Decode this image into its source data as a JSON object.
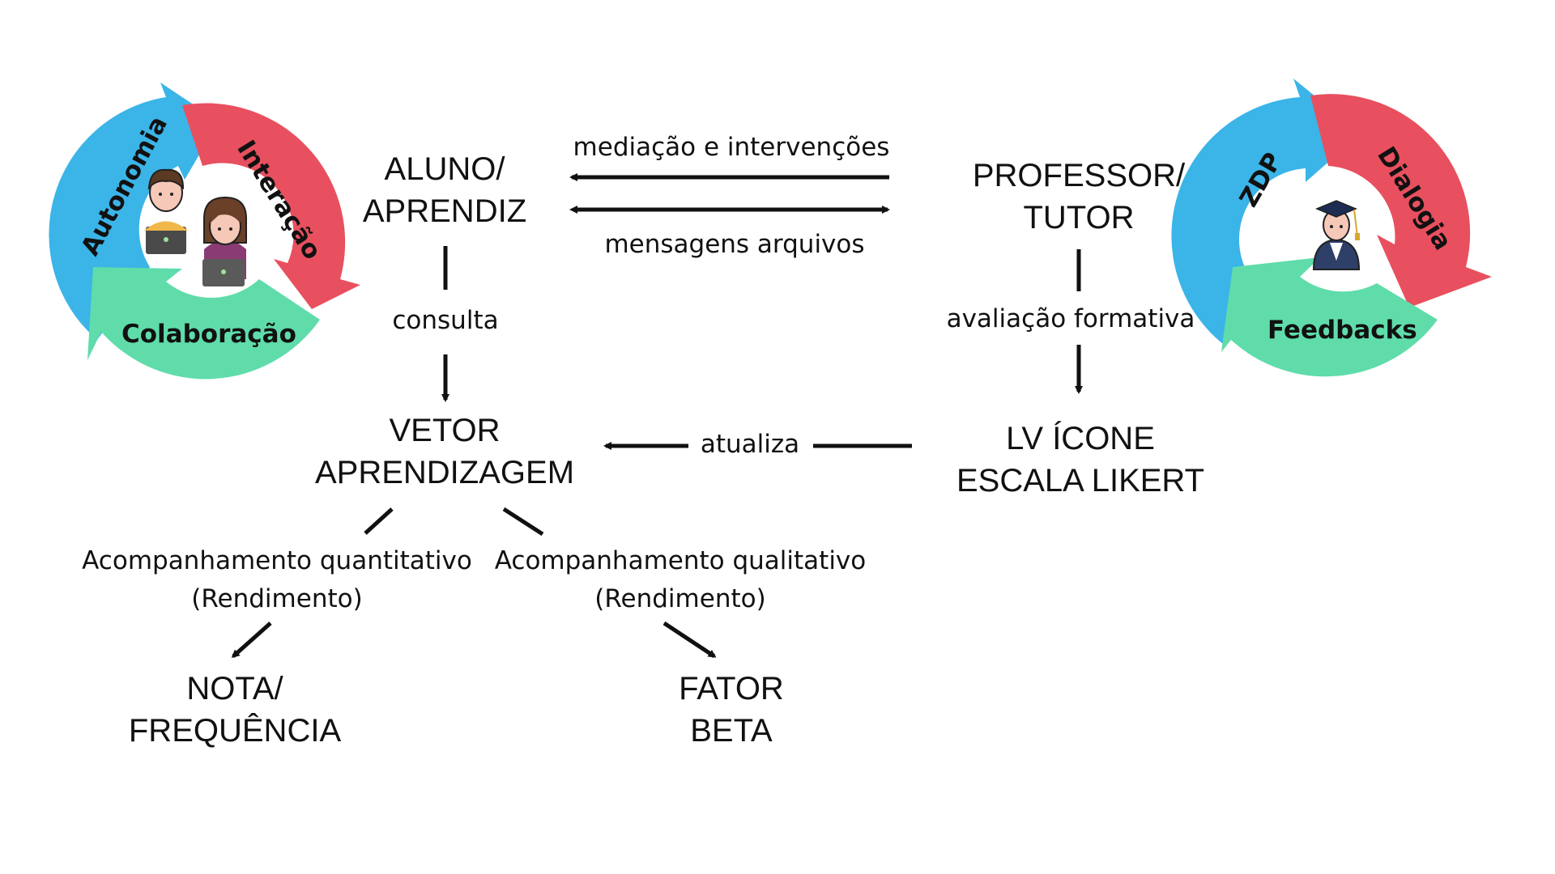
{
  "left_cycle": {
    "segments": [
      "Autonomia",
      "Interação",
      "Colaboração"
    ],
    "colors": {
      "blue": "#3bb4e8",
      "red": "#e8505f",
      "green": "#5fdcaa"
    }
  },
  "right_cycle": {
    "segments": [
      "ZDP",
      "Dialogia",
      "Feedbacks"
    ],
    "colors": {
      "blue": "#3bb4e8",
      "red": "#e8505f",
      "green": "#5fdcaa"
    }
  },
  "nodes": {
    "aluno": [
      "ALUNO/",
      "APRENDIZ"
    ],
    "professor": [
      "PROFESSOR/",
      "TUTOR"
    ],
    "vetor": [
      "VETOR",
      "APRENDIZAGEM"
    ],
    "lv": [
      "LV ÍCONE",
      "ESCALA LIKERT"
    ],
    "nota": [
      "NOTA/",
      "FREQUÊNCIA"
    ],
    "fator": [
      "FATOR",
      "BETA"
    ]
  },
  "edges": {
    "mediacao": "mediação e intervenções",
    "mensagens": "mensagens arquivos",
    "consulta": "consulta",
    "avaliacao": "avaliação formativa",
    "atualiza": "atualiza",
    "quantitativo": [
      "Acompanhamento quantitativo",
      "(Rendimento)"
    ],
    "qualitativo": [
      "Acompanhamento qualitativo",
      "(Rendimento)"
    ]
  },
  "icons": [
    "student-male-icon",
    "student-female-icon",
    "graduate-teacher-icon"
  ]
}
